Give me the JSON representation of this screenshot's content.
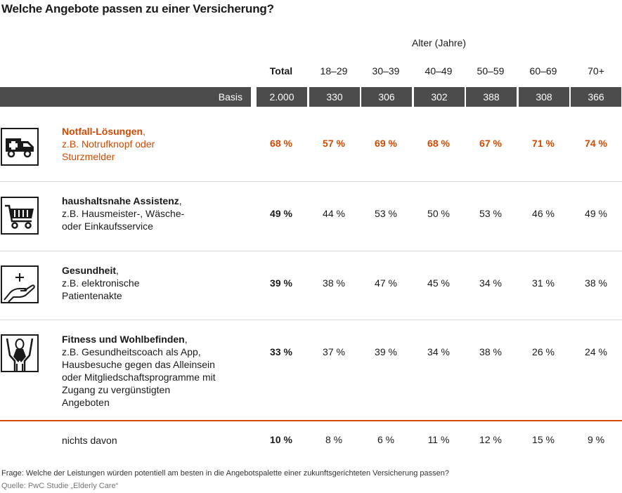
{
  "title": "Welche Angebote passen zu einer Versicherung?",
  "chart_data": {
    "type": "table",
    "group_label": "Alter (Jahre)",
    "columns": [
      "Total",
      "18–29",
      "30–39",
      "40–49",
      "50–59",
      "60–69",
      "70+"
    ],
    "basis": {
      "label": "Basis",
      "values": [
        "2.000",
        "330",
        "306",
        "302",
        "388",
        "308",
        "366"
      ]
    },
    "rows": [
      {
        "name": "Notfall-Lösungen",
        "detail": "z.B. Notrufknopf oder Sturzmelder",
        "icon": "ambulance-icon",
        "highlight": true,
        "values": [
          "68 %",
          "57 %",
          "69 %",
          "68 %",
          "67 %",
          "71 %",
          "74 %"
        ]
      },
      {
        "name": "haushaltsnahe Assistenz",
        "detail": "z.B. Hausmeister-, Wäsche- oder Einkaufsservice",
        "icon": "shopping-cart-icon",
        "highlight": false,
        "values": [
          "49 %",
          "44 %",
          "53 %",
          "50 %",
          "53 %",
          "46 %",
          "49 %"
        ]
      },
      {
        "name": "Gesundheit",
        "detail": "z.B. elektronische Patientenakte",
        "icon": "health-hand-icon",
        "highlight": false,
        "values": [
          "39 %",
          "38 %",
          "47 %",
          "45 %",
          "34 %",
          "31 %",
          "38 %"
        ]
      },
      {
        "name": "Fitness und Wohlbefinden",
        "detail": "z.B. Gesundheitscoach als App, Hausbesuche gegen das Alleinsein oder Mitgliedschaftsprogramme mit Zugang zu vergünstigten Angeboten",
        "icon": "fitness-person-icon",
        "highlight": false,
        "values": [
          "33 %",
          "37 %",
          "39 %",
          "34 %",
          "38 %",
          "26 %",
          "24 %"
        ]
      },
      {
        "name": "",
        "detail": "nichts davon",
        "icon": "",
        "highlight": false,
        "values": [
          "10 %",
          "8 %",
          "6 %",
          "11 %",
          "12 %",
          "15 %",
          "9 %"
        ]
      }
    ]
  },
  "footer": {
    "question": "Frage: Welche der Leistungen würden potentiell am besten in die Angebotspalette einer zukunftsgerichteten Versicherung passen?",
    "source": "Quelle: PwC Studie „Elderly Care“"
  },
  "colors": {
    "accent": "#d04a02",
    "basis_bar": "#4c4c4c",
    "separator": "#d9d9d9"
  }
}
